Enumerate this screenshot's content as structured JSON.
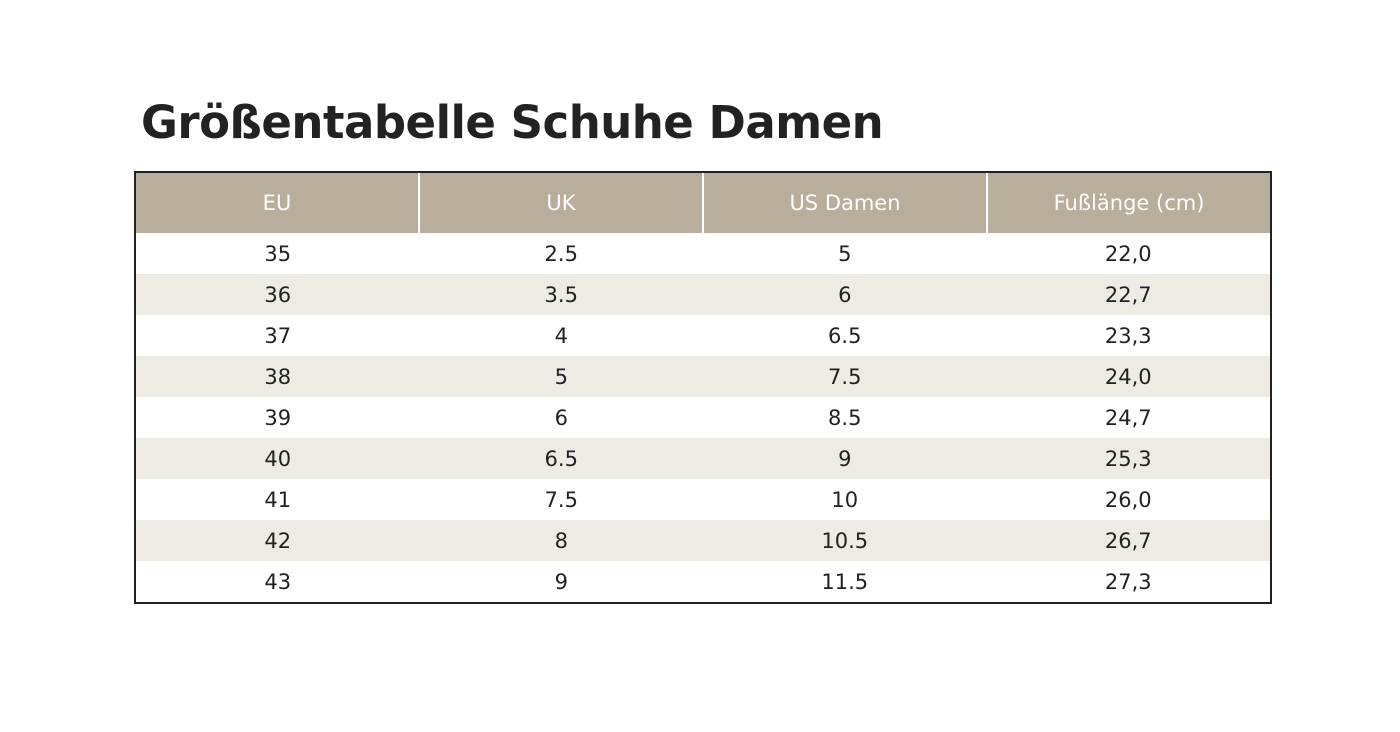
{
  "header": {
    "title": "Größentabelle Schuhe Damen"
  },
  "table": {
    "columns": [
      "EU",
      "UK",
      "US Damen",
      "Fußlänge (cm)"
    ],
    "rows": [
      [
        "35",
        "2.5",
        "5",
        "22,0"
      ],
      [
        "36",
        "3.5",
        "6",
        "22,7"
      ],
      [
        "37",
        "4",
        "6.5",
        "23,3"
      ],
      [
        "38",
        "5",
        "7.5",
        "24,0"
      ],
      [
        "39",
        "6",
        "8.5",
        "24,7"
      ],
      [
        "40",
        "6.5",
        "9",
        "25,3"
      ],
      [
        "41",
        "7.5",
        "10",
        "26,0"
      ],
      [
        "42",
        "8",
        "10.5",
        "26,7"
      ],
      [
        "43",
        "9",
        "11.5",
        "27,3"
      ]
    ]
  }
}
